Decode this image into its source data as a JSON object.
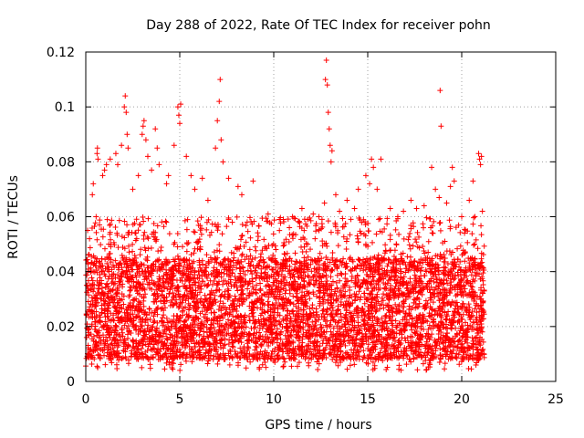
{
  "chart_data": {
    "type": "scatter",
    "title": "Day 288 of 2022, Rate Of TEC Index for receiver pohn",
    "xlabel": "GPS time / hours",
    "ylabel": "ROTI / TECUs",
    "xlim": [
      0,
      25
    ],
    "ylim": [
      0,
      0.12
    ],
    "x_ticks": [
      0,
      5,
      10,
      15,
      20,
      25
    ],
    "y_ticks": [
      0,
      0.02,
      0.04,
      0.06,
      0.08,
      0.1,
      0.12
    ],
    "x_tick_labels": [
      "0",
      "5",
      "10",
      "15",
      "20",
      "25"
    ],
    "y_tick_labels": [
      "0",
      "0.02",
      "0.04",
      "0.06",
      "0.08",
      "0.1",
      "0.12"
    ],
    "grid": true,
    "marker": "+",
    "color": "#ff0000",
    "data_range_hours": [
      0,
      21.2
    ],
    "bulk_band": [
      0.008,
      0.045
    ],
    "series": [
      {
        "name": "ROTI",
        "points": [
          [
            0.1,
            0.055
          ],
          [
            0.2,
            0.052
          ],
          [
            0.35,
            0.068
          ],
          [
            0.4,
            0.072
          ],
          [
            0.55,
            0.06
          ],
          [
            0.6,
            0.083
          ],
          [
            0.62,
            0.085
          ],
          [
            0.65,
            0.081
          ],
          [
            0.9,
            0.075
          ],
          [
            1.0,
            0.077
          ],
          [
            1.1,
            0.079
          ],
          [
            1.3,
            0.081
          ],
          [
            1.6,
            0.083
          ],
          [
            1.7,
            0.079
          ],
          [
            1.9,
            0.086
          ],
          [
            2.05,
            0.1
          ],
          [
            2.1,
            0.104
          ],
          [
            2.15,
            0.098
          ],
          [
            2.2,
            0.09
          ],
          [
            2.25,
            0.085
          ],
          [
            2.5,
            0.07
          ],
          [
            2.8,
            0.075
          ],
          [
            3.0,
            0.09
          ],
          [
            3.05,
            0.093
          ],
          [
            3.1,
            0.095
          ],
          [
            3.2,
            0.088
          ],
          [
            3.3,
            0.082
          ],
          [
            3.5,
            0.077
          ],
          [
            3.7,
            0.092
          ],
          [
            3.8,
            0.085
          ],
          [
            3.9,
            0.079
          ],
          [
            4.3,
            0.072
          ],
          [
            4.4,
            0.075
          ],
          [
            4.7,
            0.086
          ],
          [
            4.9,
            0.1
          ],
          [
            4.95,
            0.097
          ],
          [
            5.0,
            0.094
          ],
          [
            5.05,
            0.101
          ],
          [
            5.35,
            0.082
          ],
          [
            5.6,
            0.075
          ],
          [
            5.8,
            0.07
          ],
          [
            6.2,
            0.074
          ],
          [
            6.5,
            0.066
          ],
          [
            6.9,
            0.085
          ],
          [
            7.0,
            0.095
          ],
          [
            7.1,
            0.102
          ],
          [
            7.15,
            0.11
          ],
          [
            7.2,
            0.088
          ],
          [
            7.3,
            0.08
          ],
          [
            7.6,
            0.074
          ],
          [
            8.1,
            0.071
          ],
          [
            8.3,
            0.068
          ],
          [
            8.9,
            0.073
          ],
          [
            9.7,
            0.061
          ],
          [
            10.3,
            0.059
          ],
          [
            11.0,
            0.06
          ],
          [
            11.5,
            0.063
          ],
          [
            11.8,
            0.059
          ],
          [
            12.1,
            0.061
          ],
          [
            12.4,
            0.06
          ],
          [
            12.7,
            0.065
          ],
          [
            12.75,
            0.11
          ],
          [
            12.8,
            0.117
          ],
          [
            12.85,
            0.108
          ],
          [
            12.9,
            0.098
          ],
          [
            12.95,
            0.092
          ],
          [
            13.0,
            0.086
          ],
          [
            13.05,
            0.08
          ],
          [
            13.1,
            0.084
          ],
          [
            13.3,
            0.068
          ],
          [
            13.5,
            0.062
          ],
          [
            13.9,
            0.066
          ],
          [
            14.3,
            0.063
          ],
          [
            14.5,
            0.07
          ],
          [
            14.9,
            0.075
          ],
          [
            15.1,
            0.072
          ],
          [
            15.2,
            0.081
          ],
          [
            15.3,
            0.078
          ],
          [
            15.5,
            0.07
          ],
          [
            15.7,
            0.081
          ],
          [
            16.2,
            0.063
          ],
          [
            16.6,
            0.06
          ],
          [
            16.9,
            0.062
          ],
          [
            17.3,
            0.066
          ],
          [
            17.6,
            0.063
          ],
          [
            18.0,
            0.064
          ],
          [
            18.4,
            0.078
          ],
          [
            18.6,
            0.07
          ],
          [
            18.8,
            0.067
          ],
          [
            18.85,
            0.106
          ],
          [
            18.9,
            0.093
          ],
          [
            19.2,
            0.065
          ],
          [
            19.4,
            0.071
          ],
          [
            19.5,
            0.078
          ],
          [
            19.6,
            0.073
          ],
          [
            20.0,
            0.06
          ],
          [
            20.4,
            0.066
          ],
          [
            20.6,
            0.073
          ],
          [
            20.7,
            0.06
          ],
          [
            20.9,
            0.083
          ],
          [
            20.95,
            0.081
          ],
          [
            21.0,
            0.079
          ],
          [
            21.05,
            0.082
          ],
          [
            21.1,
            0.062
          ]
        ]
      }
    ]
  }
}
